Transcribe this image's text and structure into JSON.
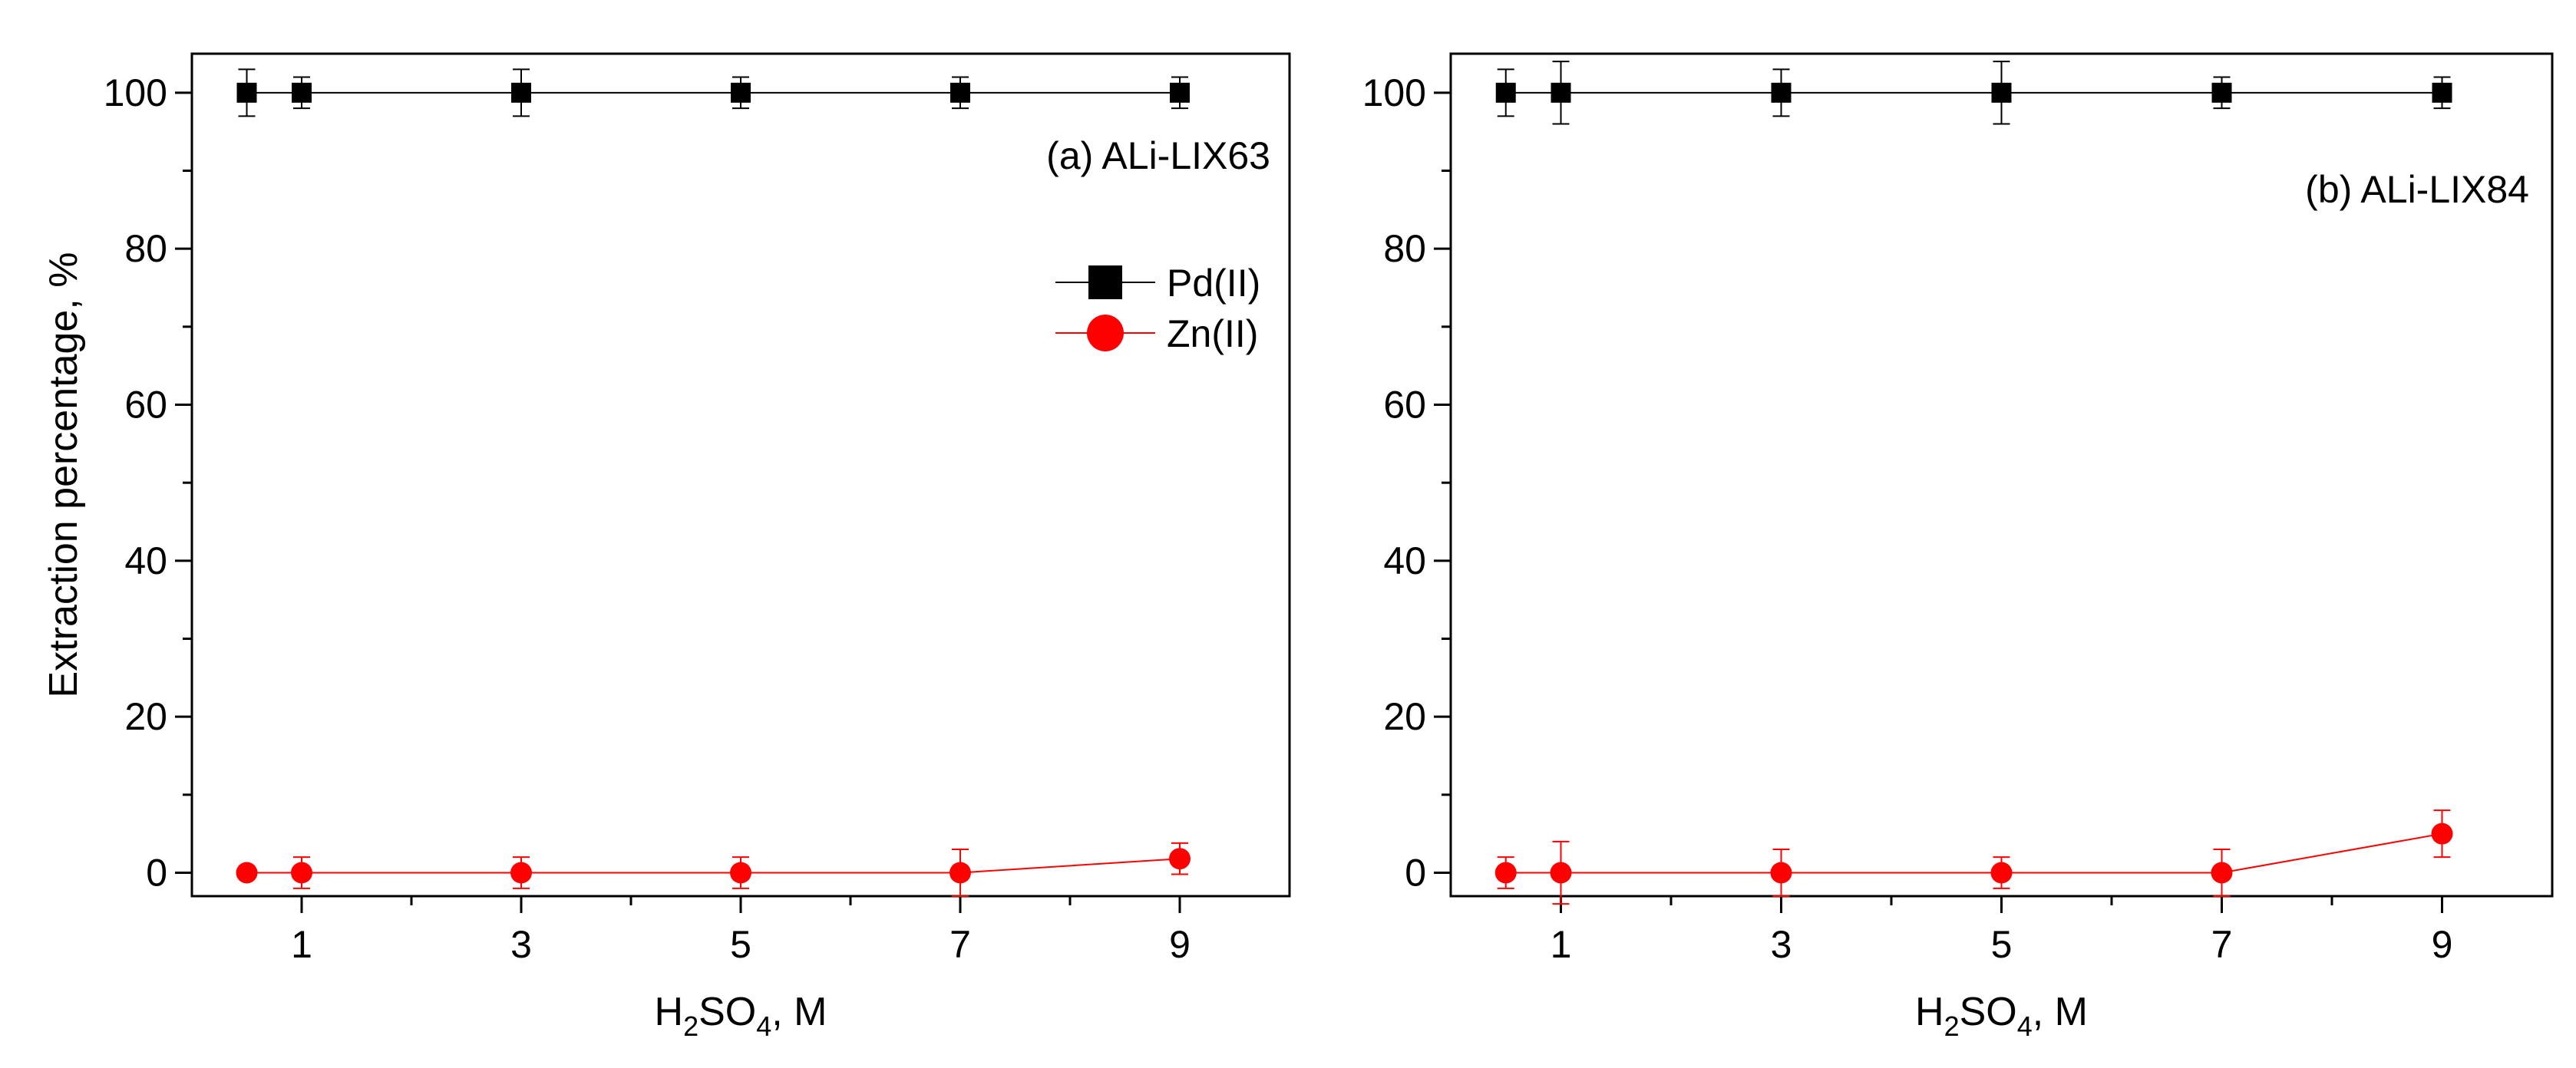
{
  "chart_data": [
    {
      "type": "scatter",
      "annotation": "(a) ALi-LIX63",
      "xlabel": {
        "base": "H",
        "sub1": "2",
        "mid": "SO",
        "sub2": "4",
        "tail": ", M"
      },
      "ylabel": "Extraction percentage, %",
      "xlim": [
        0,
        10
      ],
      "ylim": [
        -3,
        105
      ],
      "xticks": [
        "1",
        "3",
        "5",
        "7",
        "9"
      ],
      "yticks": [
        "0",
        "20",
        "40",
        "60",
        "80",
        "100"
      ],
      "legend": {
        "placement": "upper-right",
        "entries": [
          "Pd(II)",
          "Zn(II)"
        ]
      },
      "x": [
        0.5,
        1,
        3,
        5,
        7,
        9
      ],
      "series": [
        {
          "name": "Pd(II)",
          "marker": "square",
          "color": "#000000",
          "values": [
            100,
            100,
            100,
            100,
            100,
            100
          ],
          "errors": [
            3,
            2,
            3,
            2,
            2,
            2
          ]
        },
        {
          "name": "Zn(II)",
          "marker": "circle",
          "color": "#ff0000",
          "values": [
            0,
            0,
            0,
            0,
            0,
            1.8
          ],
          "errors": [
            0.5,
            2,
            2,
            2,
            3,
            2
          ]
        }
      ]
    },
    {
      "type": "scatter",
      "annotation": "(b) ALi-LIX84",
      "xlabel": {
        "base": "H",
        "sub1": "2",
        "mid": "SO",
        "sub2": "4",
        "tail": ", M"
      },
      "ylabel": "",
      "xlim": [
        0,
        10
      ],
      "ylim": [
        -3,
        105
      ],
      "xticks": [
        "1",
        "3",
        "5",
        "7",
        "9"
      ],
      "yticks": [
        "0",
        "20",
        "40",
        "60",
        "80",
        "100"
      ],
      "legend": null,
      "x": [
        0.5,
        1,
        3,
        5,
        7,
        9
      ],
      "series": [
        {
          "name": "Pd(II)",
          "marker": "square",
          "color": "#000000",
          "values": [
            100,
            100,
            100,
            100,
            100,
            100
          ],
          "errors": [
            3,
            4,
            3,
            4,
            2,
            2
          ]
        },
        {
          "name": "Zn(II)",
          "marker": "circle",
          "color": "#ff0000",
          "values": [
            0,
            0,
            0,
            0,
            0,
            5
          ],
          "errors": [
            2,
            4,
            3,
            2,
            3,
            3
          ]
        }
      ]
    }
  ]
}
